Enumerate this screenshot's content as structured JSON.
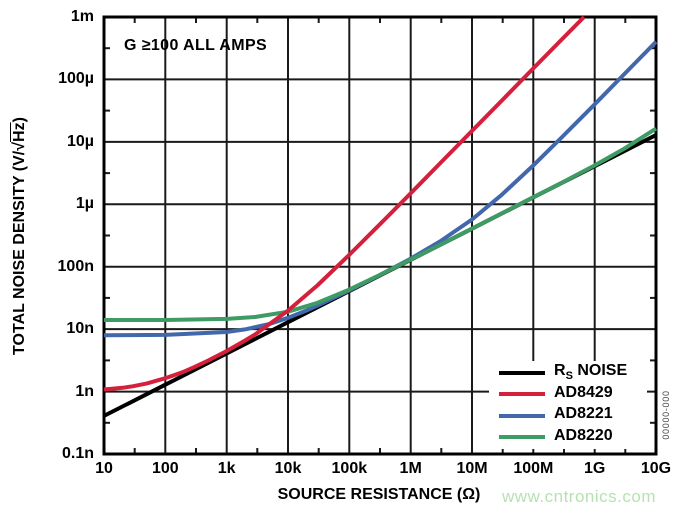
{
  "figure": {
    "annotation": "G ≥100 ALL AMPS",
    "watermark": "www.cntronics.com",
    "figure_number": "00000-000",
    "colors": {
      "black": "#000000",
      "red": "#d5203b",
      "blue": "#4268ab",
      "green": "#3d9b63",
      "grid": "#1a1a1a",
      "watermark_green": "#b6e2b1",
      "background": "#ffffff"
    }
  },
  "chart_data": {
    "type": "line",
    "title": "",
    "xlabel": "SOURCE RESISTANCE (Ω)",
    "ylabel": "TOTAL NOISE DENSITY (V/√Hz)",
    "ylabel_parts": {
      "prefix": "TOTAL NOISE DENSITY (V/√",
      "overline": "Hz",
      "suffix": ")"
    },
    "x_scale": "log",
    "y_scale": "log",
    "xlim": [
      10,
      10000000000.0
    ],
    "ylim": [
      1e-10,
      0.001
    ],
    "grid": true,
    "legend_position": "lower right",
    "x_ticks": [
      10.0,
      100.0,
      1000.0,
      10000.0,
      100000.0,
      1000000.0,
      10000000.0,
      100000000.0,
      1000000000.0,
      10000000000.0
    ],
    "x_tick_labels": [
      "10",
      "100",
      "1k",
      "10k",
      "100k",
      "1M",
      "10M",
      "100M",
      "1G",
      "10G"
    ],
    "y_ticks": [
      0.001,
      0.0001,
      1e-05,
      1e-06,
      1e-07,
      1e-08,
      1e-09,
      1e-10
    ],
    "y_tick_labels": [
      "1m",
      "100µ",
      "10µ",
      "1µ",
      "100n",
      "10n",
      "1n",
      "0.1n"
    ],
    "series": [
      {
        "id": "rs-noise",
        "name": "RS NOISE",
        "name_main": "R",
        "name_sub": "S",
        "name_rest": " NOISE",
        "color": "#000000",
        "points": [
          [
            10,
            4.07e-10
          ],
          [
            100,
            1.29e-09
          ],
          [
            1000,
            4.07e-09
          ],
          [
            10000.0,
            1.29e-08
          ],
          [
            100000.0,
            4.07e-08
          ],
          [
            1000000.0,
            1.29e-07
          ],
          [
            10000000.0,
            4.07e-07
          ],
          [
            100000000.0,
            1.29e-06
          ],
          [
            1000000000.0,
            4.07e-06
          ],
          [
            10000000000.0,
            1.29e-05
          ]
        ]
      },
      {
        "id": "ad8429",
        "name": "AD8429",
        "name_main": "AD8429",
        "name_sub": "",
        "name_rest": "",
        "color": "#d5203b",
        "points": [
          [
            10,
            1.08e-09
          ],
          [
            20,
            1.15e-09
          ],
          [
            30,
            1.22e-09
          ],
          [
            50,
            1.35e-09
          ],
          [
            100,
            1.64e-09
          ],
          [
            200,
            2.08e-09
          ],
          [
            300,
            2.48e-09
          ],
          [
            500,
            3.14e-09
          ],
          [
            1000,
            4.46e-09
          ],
          [
            2000,
            6.57e-09
          ],
          [
            3000,
            8.4e-09
          ],
          [
            10000.0,
            1.98e-08
          ],
          [
            30000.0,
            5e-08
          ],
          [
            100000.0,
            1.55e-07
          ],
          [
            300000.0,
            4.55e-07
          ],
          [
            1000000.0,
            1.5e-06
          ],
          [
            3000000.0,
            4.5e-06
          ],
          [
            10000000.0,
            1.5e-05
          ],
          [
            30000000.0,
            4.5e-05
          ],
          [
            100000000.0,
            0.00015
          ],
          [
            300000000.0,
            0.00045
          ],
          [
            670000000.0,
            0.001
          ]
        ]
      },
      {
        "id": "ad8221",
        "name": "AD8221",
        "name_main": "AD8221",
        "name_sub": "",
        "name_rest": "",
        "color": "#4268ab",
        "points": [
          [
            10,
            8e-09
          ],
          [
            100,
            8.1e-09
          ],
          [
            1000,
            9e-09
          ],
          [
            2000,
            9.9e-09
          ],
          [
            5000,
            1.21e-08
          ],
          [
            10000.0,
            1.52e-08
          ],
          [
            20000.0,
            1.99e-08
          ],
          [
            30000.0,
            2.37e-08
          ],
          [
            100000.0,
            4.17e-08
          ],
          [
            300000.0,
            7.2e-08
          ],
          [
            1000000.0,
            1.35e-07
          ],
          [
            3000000.0,
            2.53e-07
          ],
          [
            10000000.0,
            5.7e-07
          ],
          [
            30000000.0,
            1.4e-06
          ],
          [
            100000000.0,
            4.2e-06
          ],
          [
            300000000.0,
            1.22e-05
          ],
          [
            1000000000.0,
            4e-05
          ],
          [
            3000000000.0,
            0.00012
          ],
          [
            10000000000.0,
            0.0004
          ]
        ]
      },
      {
        "id": "ad8220",
        "name": "AD8220",
        "name_main": "AD8220",
        "name_sub": "",
        "name_rest": "",
        "color": "#3d9b63",
        "points": [
          [
            10,
            1.4e-08
          ],
          [
            100,
            1.4e-08
          ],
          [
            1000,
            1.46e-08
          ],
          [
            3000,
            1.57e-08
          ],
          [
            10000.0,
            1.9e-08
          ],
          [
            30000.0,
            2.63e-08
          ],
          [
            100000.0,
            4.3e-08
          ],
          [
            300000.0,
            7.2e-08
          ],
          [
            1000000.0,
            1.3e-07
          ],
          [
            3000000.0,
            2.23e-07
          ],
          [
            10000000.0,
            4.08e-07
          ],
          [
            30000000.0,
            7.1e-07
          ],
          [
            100000000.0,
            1.3e-06
          ],
          [
            300000000.0,
            2.25e-06
          ],
          [
            1000000000.0,
            4.2e-06
          ],
          [
            3000000000.0,
            7.7e-06
          ],
          [
            10000000000.0,
            1.63e-05
          ]
        ]
      }
    ]
  }
}
